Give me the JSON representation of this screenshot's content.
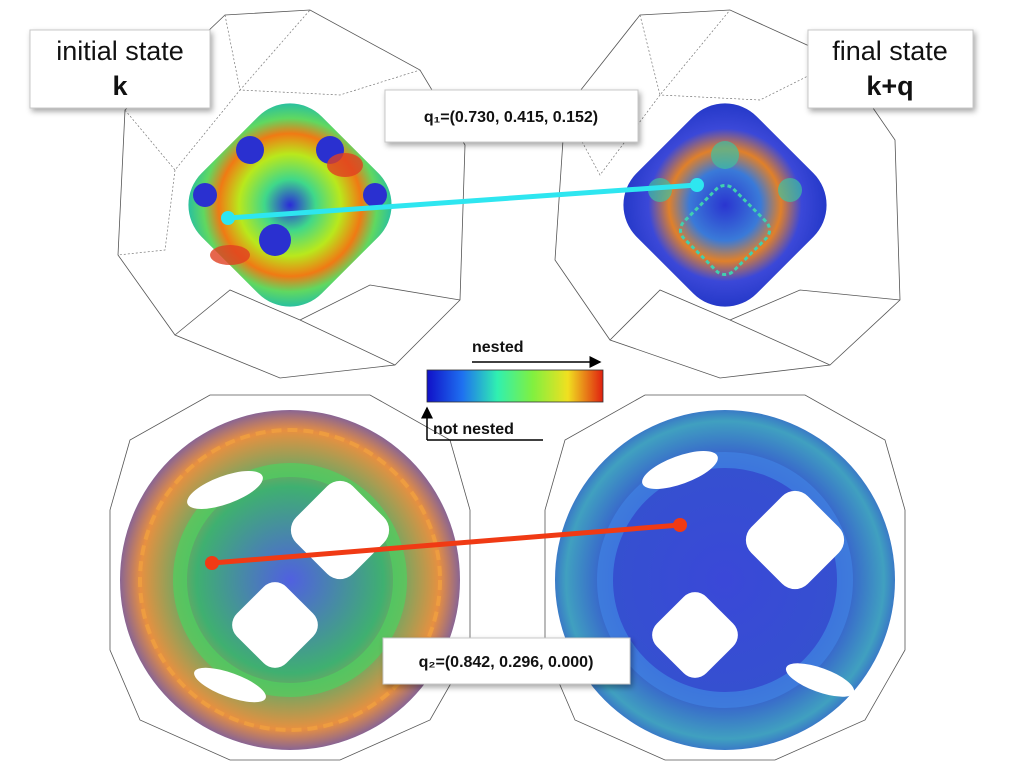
{
  "labels": {
    "initial": {
      "line1": "initial state",
      "line2": "k"
    },
    "final": {
      "line1": "final state",
      "line2": "k+q"
    },
    "q1": "q₁=(0.730, 0.415, 0.152)",
    "q2": "q₂=(0.842, 0.296, 0.000)"
  },
  "colorbar": {
    "top": "nested",
    "bottom": "not nested"
  }
}
